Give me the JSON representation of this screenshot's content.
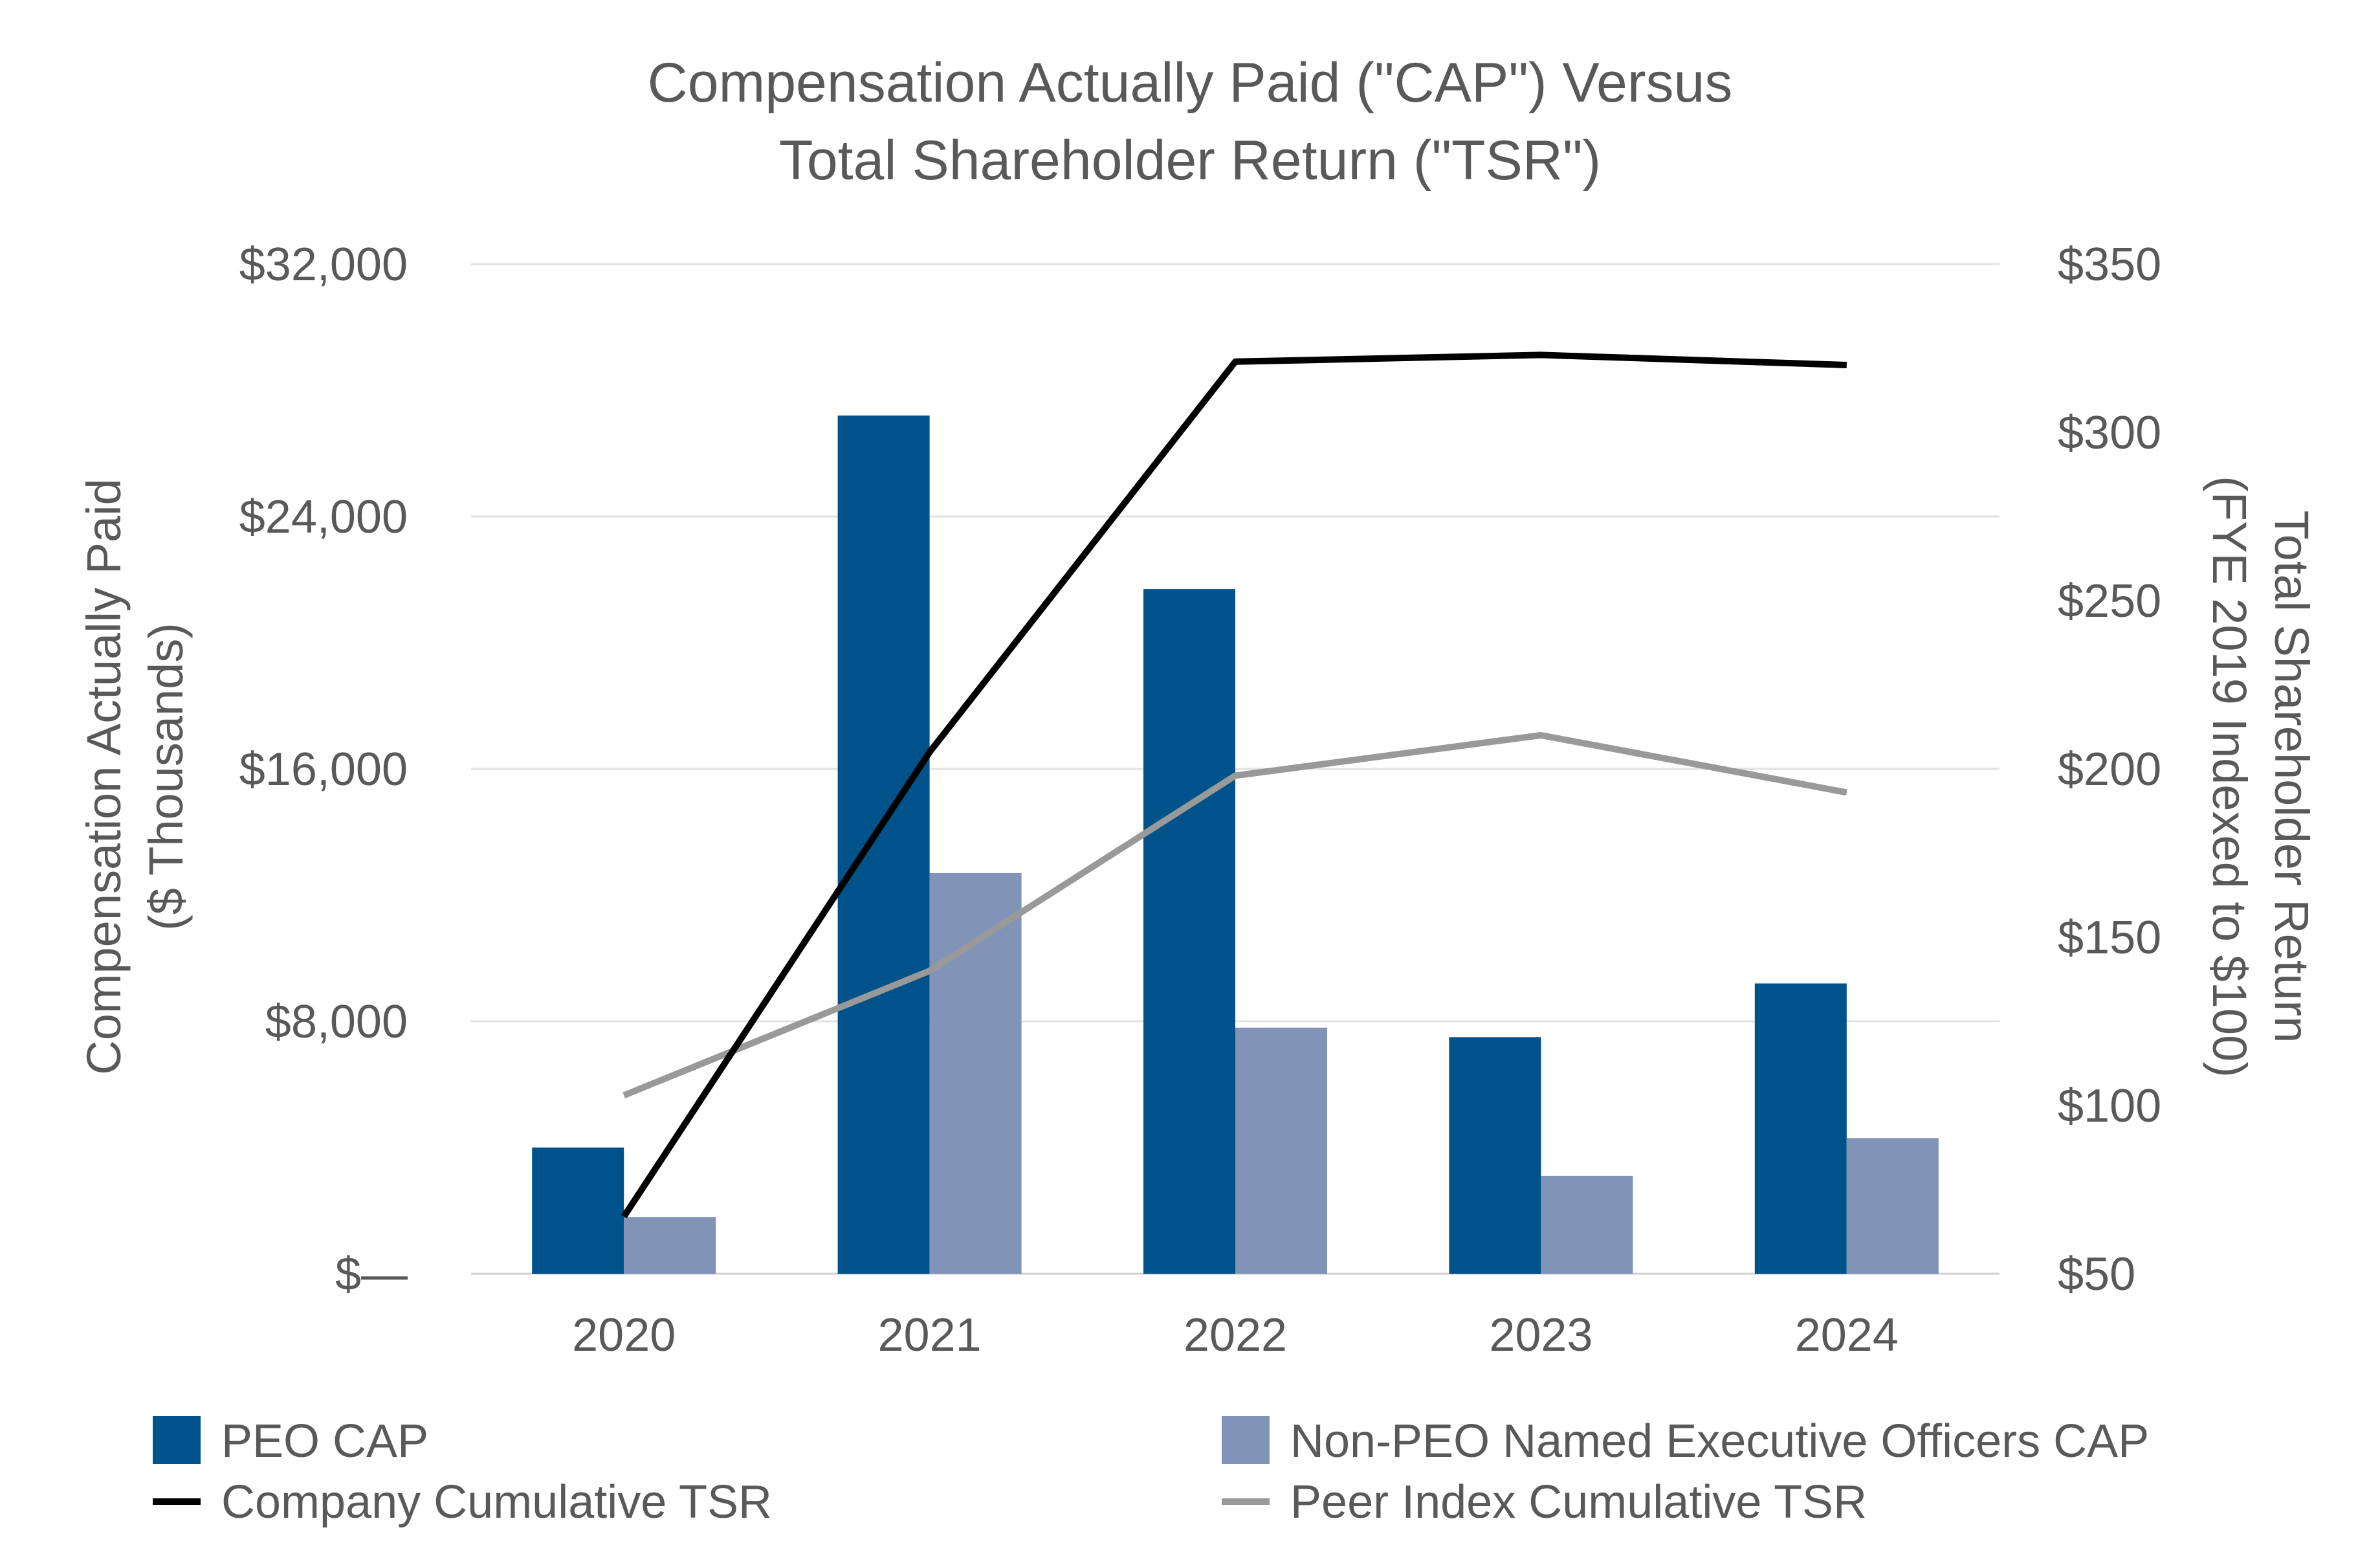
{
  "chart_data": {
    "type": "bar",
    "title": [
      "Compensation Actually Paid (\"CAP\") Versus",
      "Total Shareholder Return (\"TSR\")"
    ],
    "categories": [
      "2020",
      "2021",
      "2022",
      "2023",
      "2024"
    ],
    "left_axis": {
      "label": [
        "Compensation Actually Paid",
        "($ Thousands)"
      ],
      "ylim": [
        0,
        32000
      ],
      "ticks": [
        0,
        8000,
        16000,
        24000,
        32000
      ],
      "tick_labels": [
        "$—",
        "$8,000",
        "$16,000",
        "$24,000",
        "$32,000"
      ]
    },
    "right_axis": {
      "label": [
        "Total Shareholder Return",
        "(FYE 2019 Indexed to $100)"
      ],
      "ylim": [
        50,
        350
      ],
      "ticks": [
        50,
        100,
        150,
        200,
        250,
        300,
        350
      ],
      "tick_labels": [
        "$50",
        "$100",
        "$150",
        "$200",
        "$250",
        "$300",
        "$350"
      ]
    },
    "bar_series": [
      {
        "name": "PEO CAP",
        "color": "#00538a",
        "values": [
          4000,
          27200,
          21700,
          7500,
          9200
        ]
      },
      {
        "name": "Non-PEO Named Executive Officers CAP",
        "color": "#8193b6",
        "values": [
          1800,
          12700,
          7800,
          3100,
          4300
        ]
      }
    ],
    "line_series": [
      {
        "name": "Company Cumulative TSR",
        "color": "#000000",
        "values": [
          67,
          205,
          321,
          323,
          320
        ]
      },
      {
        "name": "Peer Index Cumulative TSR",
        "color": "#999999",
        "values": [
          103,
          140,
          198,
          210,
          193
        ]
      }
    ],
    "legend_position": "bottom",
    "grid": true
  }
}
